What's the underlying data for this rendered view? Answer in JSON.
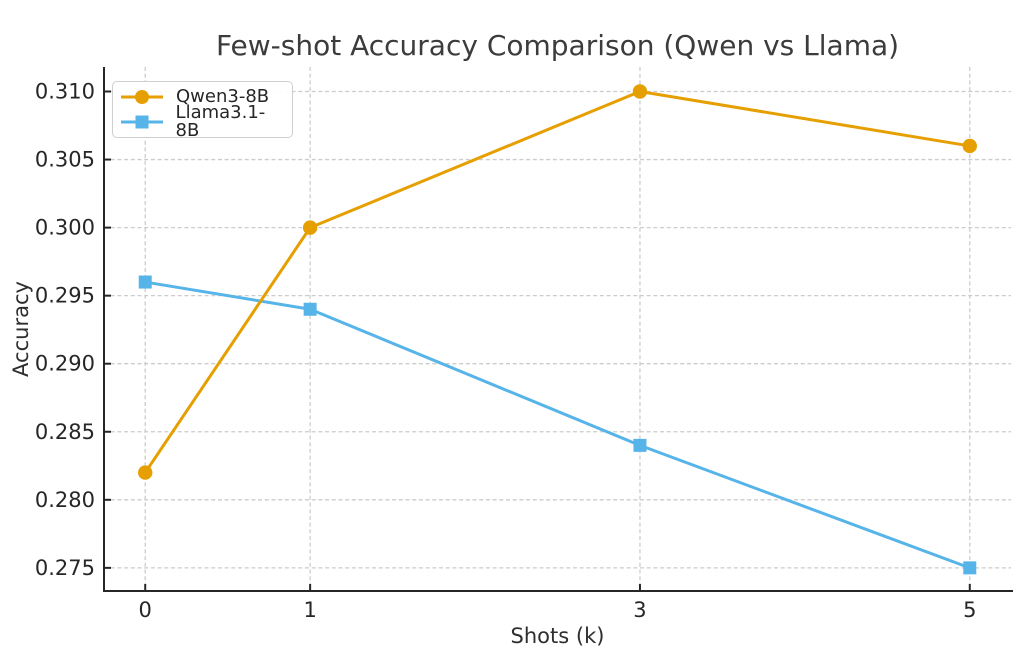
{
  "chart_data": {
    "type": "line",
    "title": "Few-shot Accuracy Comparison (Qwen vs Llama)",
    "xlabel": "Shots (k)",
    "ylabel": "Accuracy",
    "x": [
      0,
      1,
      3,
      5
    ],
    "series": [
      {
        "name": "Qwen3-8B",
        "values": [
          0.282,
          0.3,
          0.31,
          0.306
        ],
        "color": "#E69F00",
        "marker": "circle"
      },
      {
        "name": "Llama3.1-8B",
        "values": [
          0.296,
          0.294,
          0.284,
          0.275
        ],
        "color": "#56B4E9",
        "marker": "square"
      }
    ],
    "xticks": [
      0,
      1,
      3,
      5
    ],
    "xtick_labels": [
      "0",
      "1",
      "3",
      "5"
    ],
    "yticks": [
      0.275,
      0.28,
      0.285,
      0.29,
      0.295,
      0.3,
      0.305,
      0.31
    ],
    "ytick_labels": [
      "0.275",
      "0.280",
      "0.285",
      "0.290",
      "0.295",
      "0.300",
      "0.305",
      "0.310"
    ],
    "xlim": [
      -0.25,
      5.25
    ],
    "ylim": [
      0.2733,
      0.3118
    ],
    "grid": true,
    "grid_style": "dashed",
    "legend_position": "upper-left",
    "legend_order": [
      "Qwen3-8B",
      "Llama3.1-8B"
    ],
    "draw_order_note": "orange series drawn on top of blue",
    "colors": {
      "grid": "#cccccc",
      "spine": "#262626",
      "tick": "#262626",
      "tick_text": "#262626",
      "title_text": "#3c3c3c",
      "background": "#ffffff"
    }
  }
}
